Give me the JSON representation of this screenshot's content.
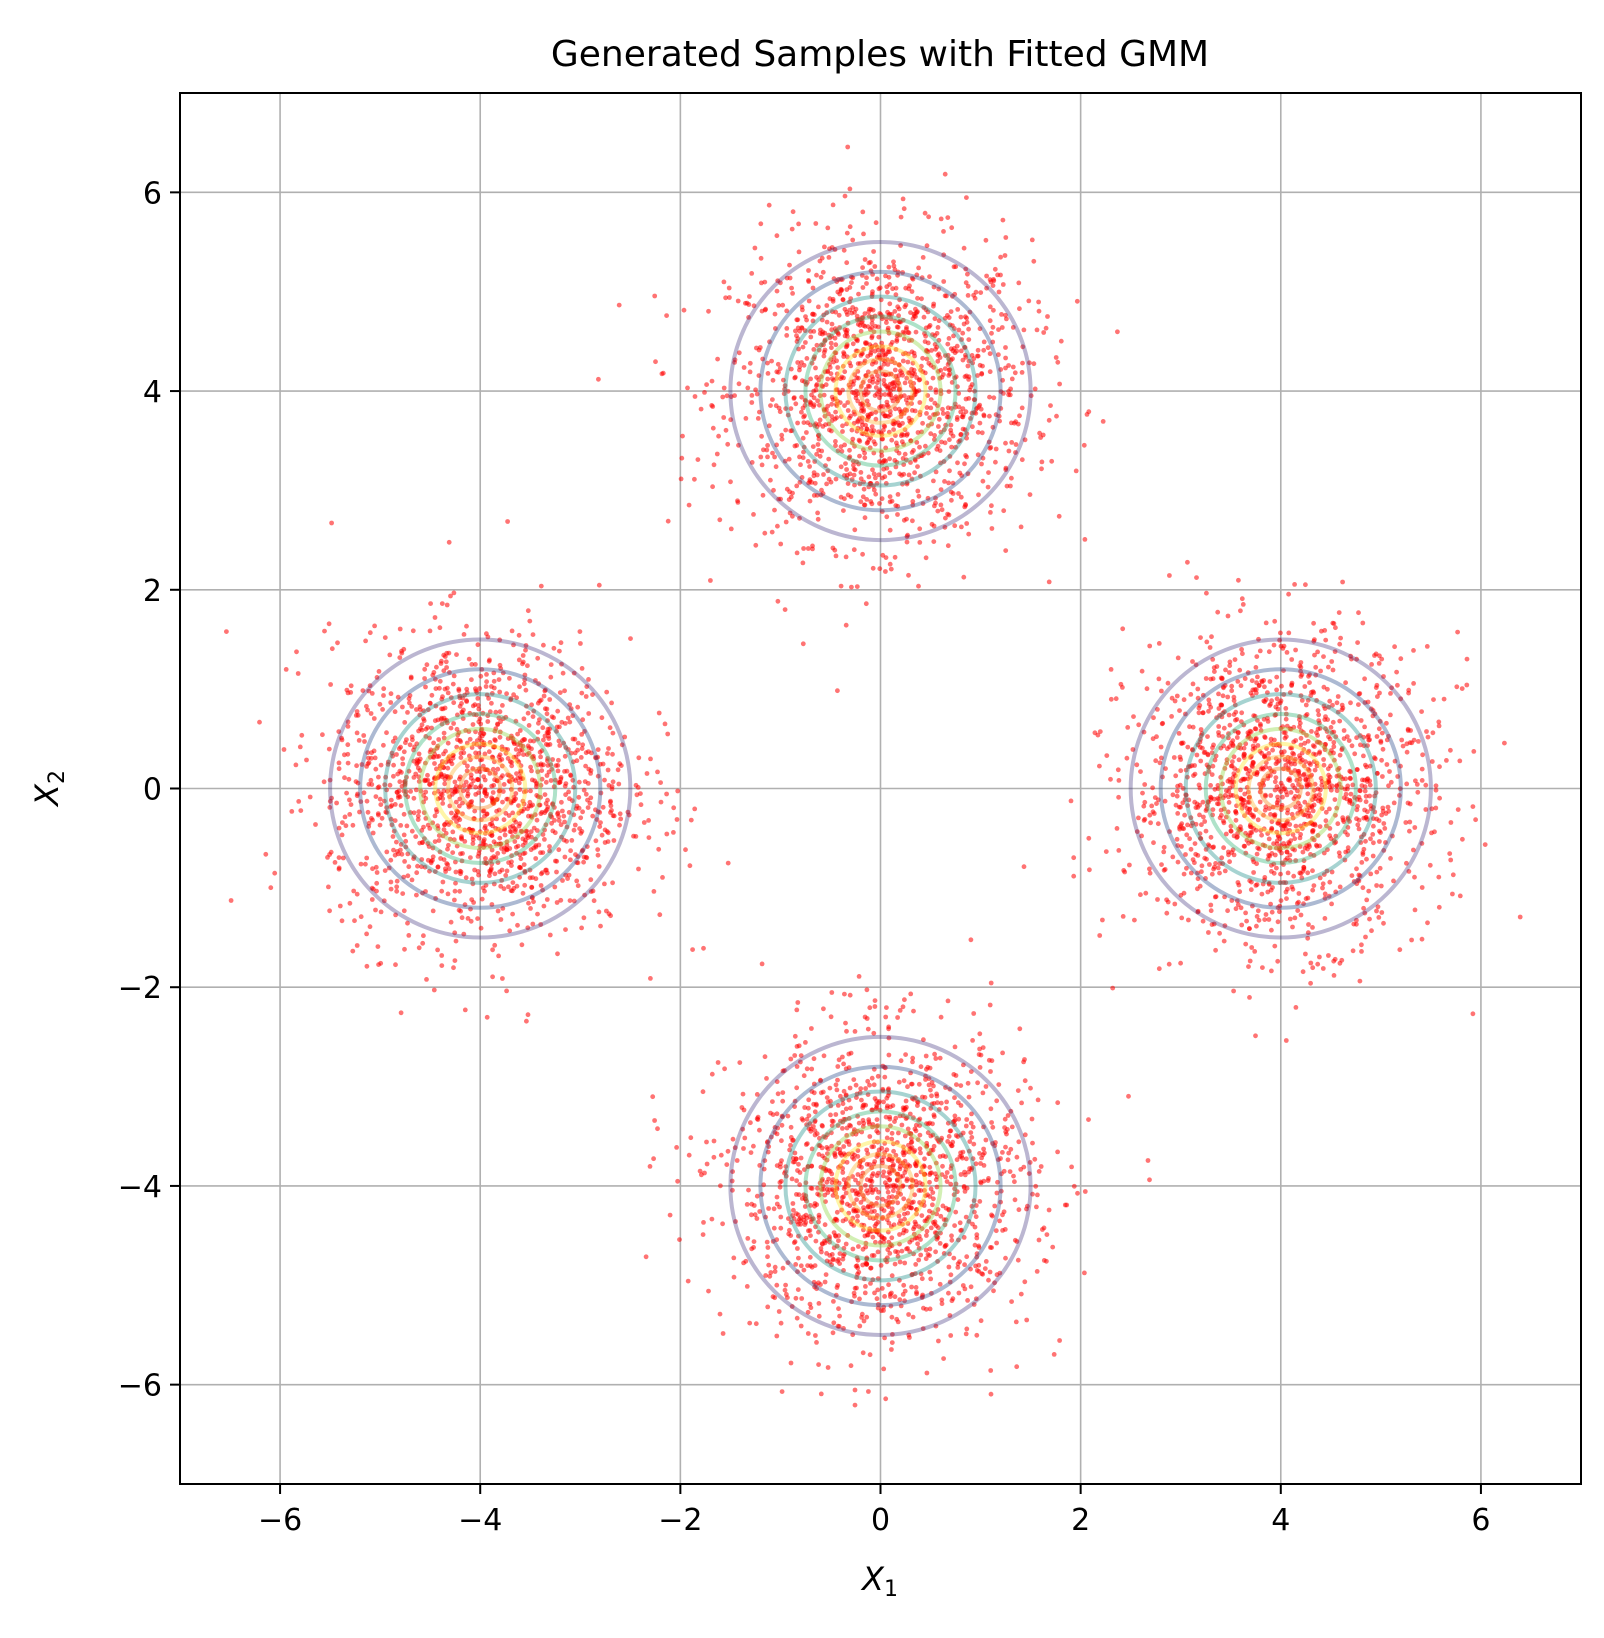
{
  "chart_data": {
    "type": "scatter",
    "title": "Generated Samples with Fitted GMM",
    "xlabel": {
      "symbol": "X",
      "subscript": "1"
    },
    "ylabel": {
      "symbol": "X",
      "subscript": "2"
    },
    "xlim": [
      -7,
      7
    ],
    "ylim": [
      -7,
      7
    ],
    "xticks": [
      -6,
      -4,
      -2,
      0,
      2,
      4,
      6
    ],
    "yticks": [
      -6,
      -4,
      -2,
      0,
      2,
      4,
      6
    ],
    "xtick_labels": [
      "−6",
      "−4",
      "−2",
      "0",
      "2",
      "4",
      "6"
    ],
    "ytick_labels": [
      "−6",
      "−4",
      "−2",
      "0",
      "2",
      "4",
      "6"
    ],
    "grid": true,
    "series": [
      {
        "kind": "samples",
        "color": "#ff0000",
        "marker_alpha": 0.55,
        "clusters": [
          {
            "center": [
              0,
              4
            ],
            "std": 0.75,
            "count": 1500
          },
          {
            "center": [
              -4,
              0
            ],
            "std": 0.75,
            "count": 1500
          },
          {
            "center": [
              4,
              0
            ],
            "std": 0.75,
            "count": 1500
          },
          {
            "center": [
              0,
              -4
            ],
            "std": 0.75,
            "count": 1500
          }
        ]
      },
      {
        "kind": "gmm_density_contours",
        "components": [
          {
            "mean": [
              0,
              4
            ],
            "contour_radii": [
              1.5,
              1.2,
              0.95,
              0.75,
              0.6,
              0.45,
              0.32,
              0.2
            ]
          },
          {
            "mean": [
              -4,
              0
            ],
            "contour_radii": [
              1.5,
              1.2,
              0.95,
              0.75,
              0.6,
              0.45,
              0.32,
              0.2
            ]
          },
          {
            "mean": [
              4,
              0
            ],
            "contour_radii": [
              1.5,
              1.2,
              0.95,
              0.75,
              0.6,
              0.45,
              0.32,
              0.2
            ]
          },
          {
            "mean": [
              0,
              -4
            ],
            "contour_radii": [
              1.5,
              1.2,
              0.95,
              0.75,
              0.6,
              0.45,
              0.32,
              0.2
            ]
          }
        ],
        "colormap": [
          "#3b2f7a",
          "#30508e",
          "#21908d",
          "#35b779",
          "#8fd744",
          "#fde725",
          "#fdb32f",
          "#f57d15"
        ],
        "contour_alpha": 0.3
      }
    ]
  }
}
